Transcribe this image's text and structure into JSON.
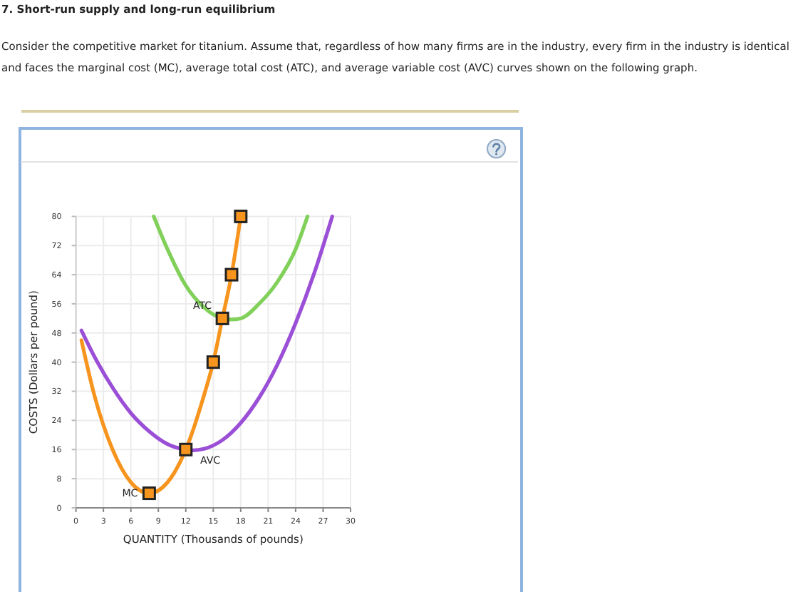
{
  "chart_data": {
    "type": "line",
    "title": "7. Short-run supply and long-run equilibrium",
    "subtitle": "Consider the competitive market for titanium. Assume that, regardless of how many firms are in the industry, every firm in the industry is identical and faces the marginal cost (MC), average total cost (ATC), and average variable cost (AVC) curves shown on the following graph.",
    "xlabel": "QUANTITY (Thousands of pounds)",
    "ylabel": "COSTS (Dollars per pound)",
    "xlim": [
      0,
      30
    ],
    "xticks": [
      0,
      3,
      6,
      9,
      12,
      15,
      18,
      21,
      24,
      27,
      30
    ],
    "ylim": [
      0,
      80
    ],
    "yticks": [
      0,
      8,
      16,
      24,
      32,
      40,
      48,
      56,
      64,
      72,
      80
    ],
    "grid": true,
    "series": [
      {
        "name": "MC",
        "color": "#f7941d",
        "x": [
          0.6,
          2,
          4,
          6,
          8,
          10,
          12,
          14,
          15,
          16,
          17,
          18
        ],
        "values": [
          46,
          31,
          16,
          7,
          4,
          7,
          16,
          31,
          40,
          52,
          64,
          80
        ]
      },
      {
        "name": "ATC",
        "color": "#80d05a",
        "x": [
          8.5,
          10,
          12,
          14,
          16,
          17,
          18,
          20,
          22,
          24,
          25.3
        ],
        "values": [
          80,
          71,
          61,
          55,
          52,
          51.7,
          52,
          56,
          62,
          71,
          80
        ]
      },
      {
        "name": "AVC",
        "color": "#9a4fd6",
        "x": [
          0.6,
          2,
          4,
          6,
          8,
          10,
          12,
          12.8,
          14,
          16,
          18,
          20,
          22,
          24,
          26,
          28
        ],
        "values": [
          48.7,
          41.6,
          33,
          26,
          21,
          17.5,
          16,
          15.8,
          16.2,
          18.6,
          23.3,
          30.2,
          39.3,
          50.7,
          64.2,
          80
        ]
      },
      {
        "type": "scatter",
        "color": "#f7941d",
        "marker": "square",
        "x": [
          8,
          12,
          15,
          16,
          17,
          18
        ],
        "values": [
          4,
          16,
          40,
          52,
          64,
          80
        ]
      }
    ]
  }
}
